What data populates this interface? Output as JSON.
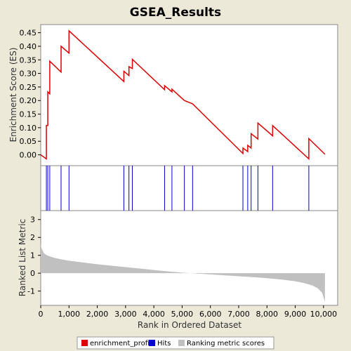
{
  "title": "GSEA_Results",
  "chart_data": {
    "type": "line",
    "title": "GSEA_Results",
    "xlabel": "Rank in Ordered Dataset",
    "xlim": [
      0,
      10500
    ],
    "x_ticks": [
      0,
      1000,
      2000,
      3000,
      4000,
      5000,
      6000,
      7000,
      8000,
      9000,
      10000
    ],
    "x_tick_labels": [
      "0",
      "1,000",
      "2,000",
      "3,000",
      "4,000",
      "5,000",
      "6,000",
      "7,000",
      "8,000",
      "9,000",
      "10,000"
    ],
    "es_panel": {
      "ylabel": "Enrichment Score (ES)",
      "ylim": [
        -0.04,
        0.48
      ],
      "y_ticks": [
        0.0,
        0.05,
        0.1,
        0.15,
        0.2,
        0.25,
        0.3,
        0.35,
        0.4,
        0.45
      ],
      "y_tick_labels": [
        "0.00",
        "0.05",
        "0.10",
        "0.15",
        "0.20",
        "0.25",
        "0.30",
        "0.35",
        "0.40",
        "0.45"
      ],
      "series": [
        {
          "name": "enrichment_profile",
          "color": "#dd0000",
          "x": [
            0,
            200,
            200,
            250,
            250,
            320,
            320,
            720,
            720,
            1000,
            1000,
            2940,
            2940,
            3120,
            3120,
            3240,
            3240,
            4380,
            4380,
            4640,
            4640,
            5080,
            5080,
            5370,
            5370,
            7150,
            7150,
            7320,
            7320,
            7440,
            7440,
            7680,
            7680,
            8200,
            8200,
            9480,
            9480,
            10050
          ],
          "y": [
            0.0,
            -0.015,
            0.108,
            0.108,
            0.232,
            0.225,
            0.345,
            0.305,
            0.4,
            0.375,
            0.457,
            0.27,
            0.308,
            0.292,
            0.325,
            0.318,
            0.352,
            0.24,
            0.255,
            0.232,
            0.242,
            0.2,
            0.2,
            0.188,
            0.188,
            0.005,
            0.025,
            0.012,
            0.035,
            0.025,
            0.078,
            0.058,
            0.117,
            0.07,
            0.108,
            -0.015,
            0.06,
            0.002
          ]
        }
      ]
    },
    "hits_panel": {
      "series_name": "Hits",
      "color": "#0000cc",
      "positions": [
        200,
        250,
        320,
        720,
        1000,
        2940,
        3120,
        3240,
        4380,
        4640,
        5080,
        5370,
        7150,
        7320,
        7440,
        7680,
        8200,
        9480
      ]
    },
    "metric_panel": {
      "ylabel": "Ranked List Metric",
      "series_name": "Ranking metric scores",
      "color": "#c0c0c0",
      "ylim": [
        -1.8,
        3.5
      ],
      "y_ticks": [
        -1,
        0,
        1,
        2,
        3
      ],
      "y_tick_labels": [
        "-1",
        "0",
        "1",
        "2",
        "3"
      ],
      "x": [
        0,
        40,
        120,
        250,
        500,
        800,
        1000,
        1500,
        2000,
        2500,
        3000,
        3500,
        4000,
        4500,
        5000,
        5500,
        6000,
        6500,
        7000,
        7500,
        8000,
        8500,
        9000,
        9300,
        9600,
        9800,
        9950,
        10050
      ],
      "y": [
        1.6,
        1.35,
        1.1,
        0.98,
        0.85,
        0.75,
        0.7,
        0.6,
        0.5,
        0.42,
        0.34,
        0.26,
        0.18,
        0.1,
        0.03,
        -0.02,
        -0.07,
        -0.12,
        -0.17,
        -0.22,
        -0.28,
        -0.35,
        -0.45,
        -0.55,
        -0.68,
        -0.85,
        -1.1,
        -1.6
      ]
    },
    "legend": {
      "placement": "bottom",
      "entries": [
        {
          "label": "enrichment_profile",
          "color": "#dd0000"
        },
        {
          "label": "Hits",
          "color": "#0000cc"
        },
        {
          "label": "Ranking metric scores",
          "color": "#c0c0c0"
        }
      ]
    }
  }
}
